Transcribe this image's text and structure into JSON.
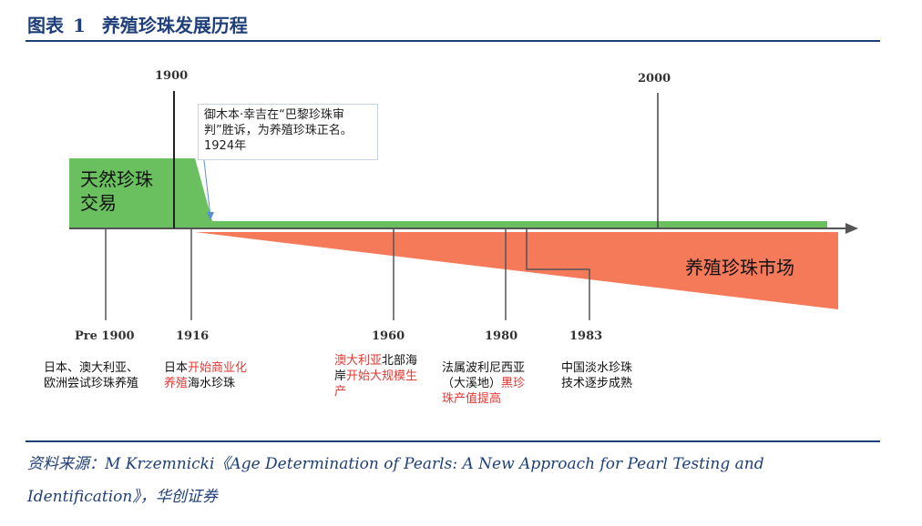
{
  "header": {
    "figure_label": "图表",
    "figure_number": "1",
    "title": "养殖珍珠发展历程"
  },
  "timeline": {
    "top_years": [
      "1900",
      "2000"
    ],
    "bottom_years": [
      "Pre 1900",
      "1916",
      "1960",
      "1980",
      "1983"
    ],
    "natural_label_line1": "天然珍珠",
    "natural_label_line2": "交易",
    "cultured_label": "养殖珍珠市场",
    "natural_color": "#6abf5e",
    "cultured_color": "#f47a5a",
    "note": {
      "line1": "御木本·幸吉在“巴黎珍珠审",
      "line2": "判”胜诉，为养殖珍珠正名。",
      "line3": "1924年"
    }
  },
  "events": {
    "pre1900": {
      "line1": "日本、澳大利亚、",
      "line2": "欧洲尝试珍珠养殖"
    },
    "y1916": {
      "a": "日本",
      "b": "开始商业化",
      "c": "养殖",
      "d": "海水珍珠"
    },
    "y1960": {
      "a": "澳大利亚",
      "b": "北部海",
      "c": "岸",
      "d": "开始大规模生",
      "e": "产"
    },
    "y1980": {
      "line1": "法属波利尼西亚",
      "line2a": "（大溪地）",
      "line2b": "黑珍",
      "line3": "珠产值提高"
    },
    "y1983": {
      "line1": "中国淡水珍珠",
      "line2": "技术逐步成熟"
    }
  },
  "source": {
    "line1": "资料来源：M Krzemnicki《Age Determination of Pearls: A New Approach for Pearl Testing and",
    "line2": "Identification》，华创证券"
  }
}
